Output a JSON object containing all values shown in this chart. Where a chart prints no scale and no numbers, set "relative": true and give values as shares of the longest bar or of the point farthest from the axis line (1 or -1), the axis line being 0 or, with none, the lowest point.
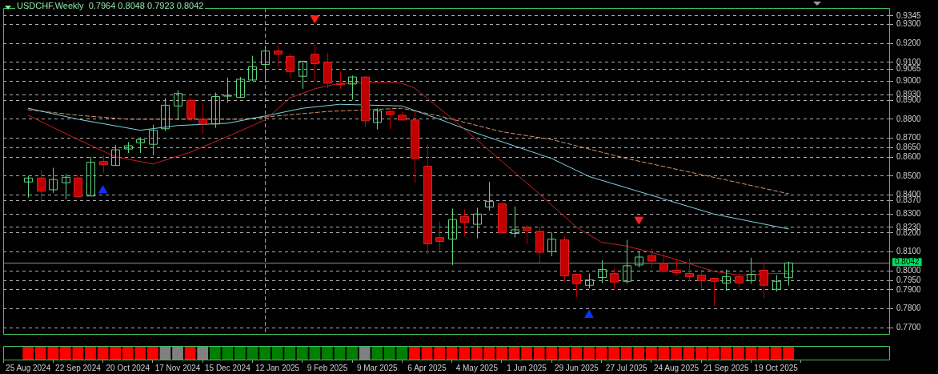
{
  "chart_data": [
    {
      "type": "candlestick",
      "title": "USDCHF,Weekly  0.7964 0.8048 0.7923 0.8042",
      "x": [
        "2024-08-25",
        "2024-09-01",
        "2024-09-08",
        "2024-09-15",
        "2024-09-22",
        "2024-09-29",
        "2024-10-06",
        "2024-10-13",
        "2024-10-20",
        "2024-10-27",
        "2024-11-03",
        "2024-11-10",
        "2024-11-17",
        "2024-11-24",
        "2024-12-01",
        "2024-12-08",
        "2024-12-15",
        "2024-12-22",
        "2024-12-29",
        "2025-01-05",
        "2025-01-12",
        "2025-01-19",
        "2025-01-26",
        "2025-02-02",
        "2025-02-09",
        "2025-02-16",
        "2025-02-23",
        "2025-03-02",
        "2025-03-09",
        "2025-03-16",
        "2025-03-23",
        "2025-03-30",
        "2025-04-06",
        "2025-04-13",
        "2025-04-20",
        "2025-04-27",
        "2025-05-04",
        "2025-05-11",
        "2025-05-18",
        "2025-05-25",
        "2025-06-01",
        "2025-06-08",
        "2025-06-15",
        "2025-06-22",
        "2025-06-29",
        "2025-07-06",
        "2025-07-13",
        "2025-07-20",
        "2025-07-27",
        "2025-08-03",
        "2025-08-10",
        "2025-08-17",
        "2025-08-24",
        "2025-08-31",
        "2025-09-07",
        "2025-09-14",
        "2025-09-21",
        "2025-09-28",
        "2025-10-05",
        "2025-10-12",
        "2025-10-19",
        "2025-10-26"
      ],
      "ohlc": [
        [
          0.8469,
          0.8502,
          0.8387,
          0.849
        ],
        [
          0.849,
          0.8531,
          0.8362,
          0.842
        ],
        [
          0.8428,
          0.8544,
          0.8412,
          0.8482
        ],
        [
          0.8465,
          0.8511,
          0.8379,
          0.8494
        ],
        [
          0.849,
          0.8511,
          0.8387,
          0.8391
        ],
        [
          0.8395,
          0.8602,
          0.8395,
          0.8573
        ],
        [
          0.8577,
          0.861,
          0.8519,
          0.856
        ],
        [
          0.8556,
          0.8664,
          0.8556,
          0.8639
        ],
        [
          0.8643,
          0.868,
          0.8622,
          0.866
        ],
        [
          0.8676,
          0.8705,
          0.8622,
          0.8693
        ],
        [
          0.8668,
          0.8771,
          0.861,
          0.8742
        ],
        [
          0.875,
          0.8912,
          0.8738,
          0.8874
        ],
        [
          0.887,
          0.8953,
          0.8796,
          0.8936
        ],
        [
          0.8899,
          0.8912,
          0.8788,
          0.8804
        ],
        [
          0.88,
          0.8887,
          0.8726,
          0.8775
        ],
        [
          0.8775,
          0.8941,
          0.8755,
          0.892
        ],
        [
          0.8922,
          0.9019,
          0.8887,
          0.8926
        ],
        [
          0.8916,
          0.9023,
          0.8912,
          0.9011
        ],
        [
          0.9007,
          0.9135,
          0.9002,
          0.9077
        ],
        [
          0.9089,
          0.9188,
          0.8994,
          0.916
        ],
        [
          0.916,
          0.9193,
          0.9077,
          0.9143
        ],
        [
          0.9131,
          0.9147,
          0.9023,
          0.9052
        ],
        [
          0.9027,
          0.911,
          0.8961,
          0.9106
        ],
        [
          0.9143,
          0.9193,
          0.8998,
          0.9093
        ],
        [
          0.9102,
          0.9151,
          0.8965,
          0.899
        ],
        [
          0.899,
          0.9052,
          0.8961,
          0.8982
        ],
        [
          0.8986,
          0.9031,
          0.8903,
          0.9023
        ],
        [
          0.9023,
          0.9027,
          0.8759,
          0.8792
        ],
        [
          0.8783,
          0.8858,
          0.8746,
          0.8845
        ],
        [
          0.8841,
          0.8858,
          0.8746,
          0.8825
        ],
        [
          0.8821,
          0.8841,
          0.8796,
          0.8796
        ],
        [
          0.8796,
          0.8841,
          0.8465,
          0.8593
        ],
        [
          0.8552,
          0.8668,
          0.8089,
          0.8143
        ],
        [
          0.8176,
          0.8259,
          0.8106,
          0.8155
        ],
        [
          0.8168,
          0.8329,
          0.8031,
          0.8271
        ],
        [
          0.8288,
          0.8325,
          0.8184,
          0.8255
        ],
        [
          0.8246,
          0.8333,
          0.8172,
          0.83
        ],
        [
          0.8337,
          0.8469,
          0.8317,
          0.8366
        ],
        [
          0.8354,
          0.8362,
          0.8197,
          0.8201
        ],
        [
          0.8197,
          0.8341,
          0.8176,
          0.8217
        ],
        [
          0.823,
          0.8242,
          0.8143,
          0.8213
        ],
        [
          0.8209,
          0.8234,
          0.8044,
          0.8098
        ],
        [
          0.8102,
          0.8205,
          0.8077,
          0.8168
        ],
        [
          0.8164,
          0.8184,
          0.7945,
          0.7974
        ],
        [
          0.7982,
          0.7986,
          0.7862,
          0.7932
        ],
        [
          0.7924,
          0.7986,
          0.7908,
          0.7953
        ],
        [
          0.7965,
          0.8056,
          0.7936,
          0.8007
        ],
        [
          0.7986,
          0.8015,
          0.7899,
          0.7941
        ],
        [
          0.7945,
          0.8164,
          0.7932,
          0.8027
        ],
        [
          0.8031,
          0.8106,
          0.8019,
          0.8073
        ],
        [
          0.8081,
          0.8122,
          0.8015,
          0.8052
        ],
        [
          0.804,
          0.8093,
          0.799,
          0.7998
        ],
        [
          0.8003,
          0.8064,
          0.7974,
          0.799
        ],
        [
          0.7986,
          0.8064,
          0.7945,
          0.7969
        ],
        [
          0.7978,
          0.7994,
          0.7908,
          0.7949
        ],
        [
          0.7961,
          0.7961,
          0.7817,
          0.7945
        ],
        [
          0.7936,
          0.8007,
          0.7895,
          0.7969
        ],
        [
          0.7969,
          0.799,
          0.7916,
          0.7936
        ],
        [
          0.7949,
          0.8069,
          0.7932,
          0.7982
        ],
        [
          0.8003,
          0.8048,
          0.7858,
          0.7924
        ],
        [
          0.7903,
          0.7978,
          0.7891,
          0.7945
        ],
        [
          0.7964,
          0.8048,
          0.7923,
          0.8042
        ]
      ],
      "colors": [
        "#5ed47f",
        "#c00000",
        "#5ed47f",
        "#5ed47f",
        "#c00000",
        "#5ed47f",
        "#c00000",
        "#5ed47f",
        "#5ed47f",
        "#5ed47f",
        "#5ed47f",
        "#5ed47f",
        "#5ed47f",
        "#c00000",
        "#c00000",
        "#5ed47f",
        "#5ed47f",
        "#5ed47f",
        "#5ed47f",
        "#5ed47f",
        "#c00000",
        "#c00000",
        "#5ed47f",
        "#c00000",
        "#c00000",
        "#c00000",
        "#5ed47f",
        "#c00000",
        "#5ed47f",
        "#c00000",
        "#c00000",
        "#c00000",
        "#c00000",
        "#c00000",
        "#5ed47f",
        "#c00000",
        "#5ed47f",
        "#5ed47f",
        "#c00000",
        "#5ed47f",
        "#c00000",
        "#c00000",
        "#5ed47f",
        "#c00000",
        "#c00000",
        "#5ed47f",
        "#5ed47f",
        "#c00000",
        "#5ed47f",
        "#5ed47f",
        "#c00000",
        "#c00000",
        "#c00000",
        "#c00000",
        "#c00000",
        "#c00000",
        "#5ed47f",
        "#c00000",
        "#5ed47f",
        "#c00000",
        "#5ed47f",
        "#5ed47f"
      ],
      "series": [
        {
          "type": "line",
          "color": "#c82020",
          "x": [
            "2024-08-25",
            "2024-09-22",
            "2024-10-13",
            "2024-11-03",
            "2024-11-24",
            "2024-12-15",
            "2025-01-05",
            "2025-01-19",
            "2025-02-02",
            "2025-02-16",
            "2025-03-16",
            "2025-03-23",
            "2025-03-30",
            "2025-04-06",
            "2025-04-20",
            "2025-05-11",
            "2025-06-08",
            "2025-06-29",
            "2025-07-13",
            "2025-07-27",
            "2025-08-10",
            "2025-08-24",
            "2025-09-14",
            "2025-09-28",
            "2025-10-19",
            "2025-10-26"
          ],
          "values": [
            0.8821,
            0.8693,
            0.8602,
            0.8564,
            0.8626,
            0.8709,
            0.8796,
            0.8912,
            0.8961,
            0.899,
            0.8994,
            0.899,
            0.8965,
            0.8912,
            0.8804,
            0.8635,
            0.8407,
            0.823,
            0.8151,
            0.8131,
            0.8098,
            0.806,
            0.7998,
            0.7978,
            0.7986,
            0.7986
          ]
        },
        {
          "type": "line",
          "color": "#7fd3e0",
          "x": [
            "2024-08-25",
            "2024-09-22",
            "2024-10-27",
            "2024-11-17",
            "2024-12-15",
            "2025-01-05",
            "2025-01-26",
            "2025-02-16",
            "2025-03-23",
            "2025-04-13",
            "2025-05-04",
            "2025-06-15",
            "2025-07-06",
            "2025-08-10",
            "2025-09-14",
            "2025-10-26"
          ],
          "values": [
            0.8858,
            0.88,
            0.8742,
            0.8767,
            0.8779,
            0.8817,
            0.8858,
            0.8879,
            0.887,
            0.88,
            0.8726,
            0.8593,
            0.8498,
            0.8399,
            0.83,
            0.8221
          ]
        },
        {
          "type": "line",
          "color": "#d4956a",
          "line_style": "dashed",
          "x": [
            "2024-08-25",
            "2024-09-22",
            "2024-10-20",
            "2024-11-17",
            "2024-12-22",
            "2025-02-09",
            "2025-03-23",
            "2025-04-13",
            "2025-05-18",
            "2025-06-15",
            "2025-07-27",
            "2025-09-14",
            "2025-10-26"
          ],
          "values": [
            0.885,
            0.8821,
            0.88,
            0.88,
            0.88,
            0.8841,
            0.8858,
            0.8817,
            0.8734,
            0.8693,
            0.8593,
            0.8494,
            0.8407
          ]
        },
        {
          "type": "scatter",
          "color": "#ff2020",
          "marker": "triangle",
          "x": [
            "2025-02-02",
            "2025-08-03"
          ],
          "values": [
            0.9333,
            0.8271
          ]
        },
        {
          "type": "scatter",
          "color": "#1030ff",
          "marker": "triangle",
          "x": [
            "2024-10-06",
            "2025-07-06"
          ],
          "values": [
            0.8424,
            0.7767
          ]
        }
      ],
      "xlim": [
        "2024-08-11",
        "2025-12-22"
      ],
      "ylim": [
        0.7663,
        0.9387
      ],
      "yticks": [
        {
          "value": 0.9345,
          "label": "0.9345"
        },
        {
          "value": 0.93,
          "label": "0.9300"
        },
        {
          "value": 0.92,
          "label": "0.9200"
        },
        {
          "value": 0.91,
          "label": "0.9100"
        },
        {
          "value": 0.9065,
          "label": "0.9065"
        },
        {
          "value": 0.9,
          "label": "0.9000"
        },
        {
          "value": 0.893,
          "label": "0.8930"
        },
        {
          "value": 0.89,
          "label": "0.8900"
        },
        {
          "value": 0.88,
          "label": "0.8800"
        },
        {
          "value": 0.87,
          "label": "0.8700"
        },
        {
          "value": 0.865,
          "label": "0.8650"
        },
        {
          "value": 0.86,
          "label": "0.8600"
        },
        {
          "value": 0.85,
          "label": "0.8500"
        },
        {
          "value": 0.84,
          "label": "0.8400"
        },
        {
          "value": 0.837,
          "label": "0.8370"
        },
        {
          "value": 0.83,
          "label": "0.8300"
        },
        {
          "value": 0.823,
          "label": "0.8230"
        },
        {
          "value": 0.82,
          "label": "0.8200"
        },
        {
          "value": 0.81,
          "label": "0.8100"
        },
        {
          "value": 0.8,
          "label": "0.8000"
        },
        {
          "value": 0.795,
          "label": "0.7950"
        },
        {
          "value": 0.79,
          "label": "0.7900"
        },
        {
          "value": 0.78,
          "label": "0.7800"
        },
        {
          "value": 0.77,
          "label": "0.7700"
        }
      ],
      "grid": "y",
      "tick_labels": "y",
      "ref_lines": [
        {
          "axis": "y",
          "value": 0.8042,
          "label": "0.8042",
          "color": "#8a8a8a"
        },
        {
          "axis": "x",
          "value": "2025-01-05",
          "color": "#5fbf5f",
          "line_style": "dashed"
        }
      ]
    },
    {
      "type": "bar",
      "relative": true,
      "x": [
        "2024-08-25",
        "2024-09-01",
        "2024-09-08",
        "2024-09-15",
        "2024-09-22",
        "2024-09-29",
        "2024-10-06",
        "2024-10-13",
        "2024-10-20",
        "2024-10-27",
        "2024-11-03",
        "2024-11-10",
        "2024-11-17",
        "2024-11-24",
        "2024-12-01",
        "2024-12-08",
        "2024-12-15",
        "2024-12-22",
        "2024-12-29",
        "2025-01-05",
        "2025-01-12",
        "2025-01-19",
        "2025-01-26",
        "2025-02-02",
        "2025-02-09",
        "2025-02-16",
        "2025-02-23",
        "2025-03-02",
        "2025-03-09",
        "2025-03-16",
        "2025-03-23",
        "2025-03-30",
        "2025-04-06",
        "2025-04-13",
        "2025-04-20",
        "2025-04-27",
        "2025-05-04",
        "2025-05-11",
        "2025-05-18",
        "2025-05-25",
        "2025-06-01",
        "2025-06-08",
        "2025-06-15",
        "2025-06-22",
        "2025-06-29",
        "2025-07-06",
        "2025-07-13",
        "2025-07-20",
        "2025-07-27",
        "2025-08-03",
        "2025-08-10",
        "2025-08-17",
        "2025-08-24",
        "2025-08-31",
        "2025-09-07",
        "2025-09-14",
        "2025-09-21",
        "2025-09-28",
        "2025-10-05",
        "2025-10-12",
        "2025-10-19",
        "2025-10-26"
      ],
      "values": [
        1,
        1,
        1,
        1,
        1,
        1,
        1,
        1,
        1,
        1,
        1,
        1,
        1,
        1,
        1,
        1,
        1,
        1,
        1,
        1,
        1,
        1,
        1,
        1,
        1,
        1,
        1,
        1,
        1,
        1,
        1,
        1,
        1,
        1,
        1,
        1,
        1,
        1,
        1,
        1,
        1,
        1,
        1,
        1,
        1,
        1,
        1,
        1,
        1,
        1,
        1,
        1,
        1,
        1,
        1,
        1,
        1,
        1,
        1,
        1,
        1,
        1
      ],
      "colors": [
        "#ff0000",
        "#ff0000",
        "#ff0000",
        "#ff0000",
        "#ff0000",
        "#ff0000",
        "#ff0000",
        "#ff0000",
        "#ff0000",
        "#ff0000",
        "#ff0000",
        "#808080",
        "#808080",
        "#ff0000",
        "#808080",
        "#008000",
        "#008000",
        "#008000",
        "#008000",
        "#008000",
        "#008000",
        "#008000",
        "#008000",
        "#008000",
        "#008000",
        "#008000",
        "#008000",
        "#808080",
        "#008000",
        "#008000",
        "#008000",
        "#ff0000",
        "#ff0000",
        "#ff0000",
        "#ff0000",
        "#ff0000",
        "#ff0000",
        "#ff0000",
        "#ff0000",
        "#ff0000",
        "#ff0000",
        "#ff0000",
        "#ff0000",
        "#ff0000",
        "#ff0000",
        "#ff0000",
        "#ff0000",
        "#ff0000",
        "#ff0000",
        "#ff0000",
        "#ff0000",
        "#ff0000",
        "#ff0000",
        "#ff0000",
        "#ff0000",
        "#ff0000",
        "#ff0000",
        "#ff0000",
        "#ff0000",
        "#ff0000",
        "#ff0000",
        "#ff0000"
      ],
      "xlim": [
        "2024-08-11",
        "2025-12-22"
      ],
      "xticks": [
        {
          "value": "2024-08-25",
          "label": "25 Aug 2024"
        },
        {
          "value": "2024-09-22",
          "label": "22 Sep 2024"
        },
        {
          "value": "2024-10-20",
          "label": "20 Oct 2024"
        },
        {
          "value": "2024-11-17",
          "label": "17 Nov 2024"
        },
        {
          "value": "2024-12-15",
          "label": "15 Dec 2024"
        },
        {
          "value": "2025-01-12",
          "label": "12 Jan 2025"
        },
        {
          "value": "2025-02-09",
          "label": "9 Feb 2025"
        },
        {
          "value": "2025-03-09",
          "label": "9 Mar 2025"
        },
        {
          "value": "2025-04-06",
          "label": "6 Apr 2025"
        },
        {
          "value": "2025-05-04",
          "label": "4 May 2025"
        },
        {
          "value": "2025-06-01",
          "label": "1 Jun 2025"
        },
        {
          "value": "2025-06-29",
          "label": "29 Jun 2025"
        },
        {
          "value": "2025-07-27",
          "label": "27 Jul 2025"
        },
        {
          "value": "2025-08-24",
          "label": "24 Aug 2025"
        },
        {
          "value": "2025-09-21",
          "label": "21 Sep 2025"
        },
        {
          "value": "2025-10-19",
          "label": "19 Oct 2025"
        }
      ],
      "tick_labels": "x"
    }
  ]
}
